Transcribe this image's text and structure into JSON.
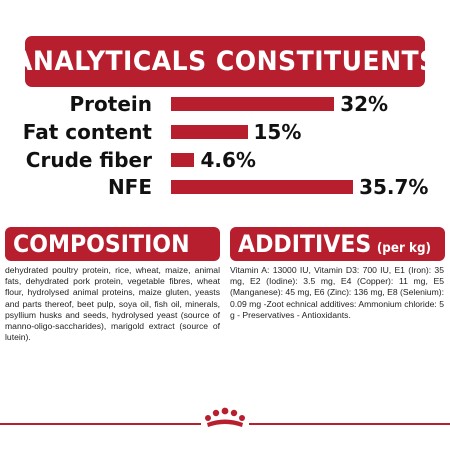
{
  "analytics": {
    "title": "ANALYTICALS CONSTITUENTS",
    "items": [
      {
        "label": "Protein",
        "value_label": "32%",
        "value": 32
      },
      {
        "label": "Fat content",
        "value_label": "15%",
        "value": 15
      },
      {
        "label": "Crude fiber",
        "value_label": "4.6%",
        "value": 4.6
      },
      {
        "label": "NFE",
        "value_label": "35.7%",
        "value": 35.7
      }
    ]
  },
  "composition": {
    "title": "COMPOSITION",
    "text": "dehydrated poultry protein, rice, wheat, maize, animal fats, dehydrated pork protein, vegetable fibres, wheat flour, hydrolysed animal proteins, maize gluten, yeasts and parts thereof, beet pulp, soya oil, fish oil, minerals, psyllium husks and seeds, hydrolysed yeast (source of manno-oligo-saccharides), marigold extract (source of lutein)."
  },
  "additives": {
    "title": "ADDITIVES",
    "subtitle": "(per kg)",
    "text": "Vitamin A: 13000 IU, Vitamin D3: 700 IU, E1 (Iron): 35 mg, E2 (Iodine): 3.5 mg, E4 (Copper): 11 mg, E5 (Manganese): 45 mg, E6 (Zinc): 136 mg, E8 (Selenium): 0.09 mg -Zoot echnical additives: Ammonium chloride: 5 g - Preservatives - Antioxidants."
  },
  "colors": {
    "accent": "#b71f2e"
  },
  "footer": {
    "logo_icon": "crown-icon"
  }
}
